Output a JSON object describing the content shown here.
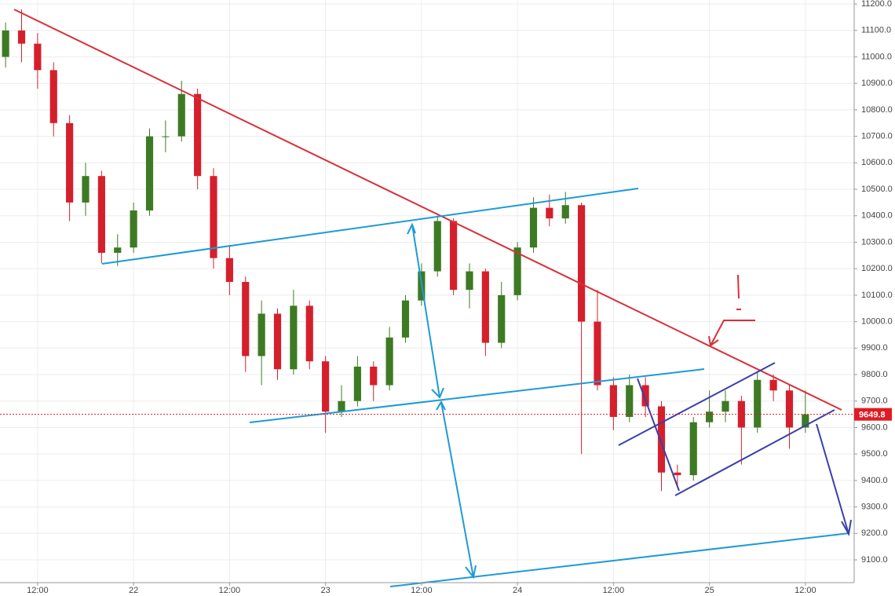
{
  "chart_data": {
    "type": "candlestick",
    "x": [
      -16,
      -14,
      -12,
      -10,
      -8,
      -6,
      -4,
      -2,
      0,
      2,
      4,
      6,
      8,
      10,
      12,
      14,
      16,
      18,
      20,
      22,
      24,
      26,
      28,
      30,
      32,
      34,
      36,
      38,
      40,
      42,
      44,
      46,
      48,
      50,
      52,
      54,
      56,
      58,
      60,
      62,
      64,
      66,
      68,
      70,
      72,
      74,
      76,
      78,
      80,
      82,
      84
    ],
    "open": [
      11000,
      11100,
      11050,
      10950,
      10750,
      10450,
      10550,
      10260,
      10280,
      10420,
      10700,
      10700,
      10860,
      10550,
      10240,
      10150,
      9870,
      10030,
      9820,
      10060,
      9850,
      9660,
      9700,
      9830,
      9760,
      9940,
      10080,
      10190,
      10380,
      10120,
      10190,
      9920,
      10100,
      10280,
      10430,
      10390,
      10440,
      10000,
      9760,
      9640,
      9760,
      9680,
      9430,
      9420,
      9620,
      9660,
      9700,
      9600,
      9780,
      9740,
      9600
    ],
    "high": [
      11130,
      11180,
      11090,
      10980,
      10780,
      10600,
      10570,
      10330,
      10450,
      10730,
      10760,
      10910,
      10880,
      10580,
      10290,
      10170,
      10080,
      10050,
      10120,
      10080,
      9870,
      9760,
      9870,
      9850,
      9980,
      10100,
      10220,
      10400,
      10390,
      10220,
      10200,
      10150,
      10300,
      10470,
      10480,
      10490,
      10450,
      10120,
      9790,
      9800,
      9790,
      9700,
      9460,
      9640,
      9740,
      9740,
      9720,
      9810,
      9800,
      9760,
      9740
    ],
    "low": [
      10960,
      10980,
      10880,
      10700,
      10380,
      10400,
      10220,
      10210,
      10260,
      10400,
      10640,
      10680,
      10500,
      10200,
      10100,
      9810,
      9760,
      9780,
      9800,
      9820,
      9580,
      9640,
      9680,
      9700,
      9740,
      9920,
      10060,
      10170,
      10100,
      10050,
      9870,
      9900,
      10080,
      10260,
      10360,
      10370,
      9500,
      9740,
      9590,
      9620,
      9640,
      9360,
      9380,
      9400,
      9600,
      9620,
      9460,
      9580,
      9700,
      9520,
      9580
    ],
    "close": [
      11100,
      11050,
      10950,
      10750,
      10450,
      10550,
      10260,
      10280,
      10420,
      10700,
      10700,
      10860,
      10550,
      10240,
      10150,
      9870,
      10030,
      9820,
      10060,
      9850,
      9660,
      9700,
      9830,
      9760,
      9940,
      10080,
      10190,
      10380,
      10120,
      10190,
      9920,
      10100,
      10280,
      10430,
      10390,
      10440,
      10000,
      9760,
      9640,
      9760,
      9680,
      9430,
      9420,
      9620,
      9660,
      9700,
      9600,
      9780,
      9740,
      9600,
      9649.8
    ],
    "up_color": "#3d7a24",
    "down_color": "#d4202c",
    "xlim": [
      -16.7,
      90.1
    ],
    "xticks": [
      {
        "value": -12,
        "label": "12:00"
      },
      {
        "value": 0,
        "label": "22"
      },
      {
        "value": 12,
        "label": "12:00"
      },
      {
        "value": 24,
        "label": "23"
      },
      {
        "value": 36,
        "label": "12:00"
      },
      {
        "value": 48,
        "label": "24"
      },
      {
        "value": 60,
        "label": "12:00"
      },
      {
        "value": 72,
        "label": "25"
      },
      {
        "value": 84,
        "label": "12:00"
      }
    ],
    "ylim": [
      9014,
      11215
    ],
    "yticks": [
      {
        "value": 9100,
        "label": "9100.0"
      },
      {
        "value": 9200,
        "label": "9200.0"
      },
      {
        "value": 9300,
        "label": "9300.0"
      },
      {
        "value": 9400,
        "label": "9400.0"
      },
      {
        "value": 9500,
        "label": "9500.0"
      },
      {
        "value": 9600,
        "label": "9600.0"
      },
      {
        "value": 9700,
        "label": "9700.0"
      },
      {
        "value": 9800,
        "label": "9800.0"
      },
      {
        "value": 9900,
        "label": "9900.0"
      },
      {
        "value": 10000,
        "label": "10000.0"
      },
      {
        "value": 10100,
        "label": "10100.0"
      },
      {
        "value": 10200,
        "label": "10200.0"
      },
      {
        "value": 10300,
        "label": "10300.0"
      },
      {
        "value": 10400,
        "label": "10400.0"
      },
      {
        "value": 10500,
        "label": "10500.0"
      },
      {
        "value": 10600,
        "label": "10600.0"
      },
      {
        "value": 10700,
        "label": "10700.0"
      },
      {
        "value": 10800,
        "label": "10800.0"
      },
      {
        "value": 10900,
        "label": "10900.0"
      },
      {
        "value": 11000,
        "label": "11000.0"
      },
      {
        "value": 11100,
        "label": "11100.0"
      },
      {
        "value": 11200,
        "label": "11200.0"
      }
    ],
    "grid": true,
    "last_price_color": "#e01b24"
  }
}
